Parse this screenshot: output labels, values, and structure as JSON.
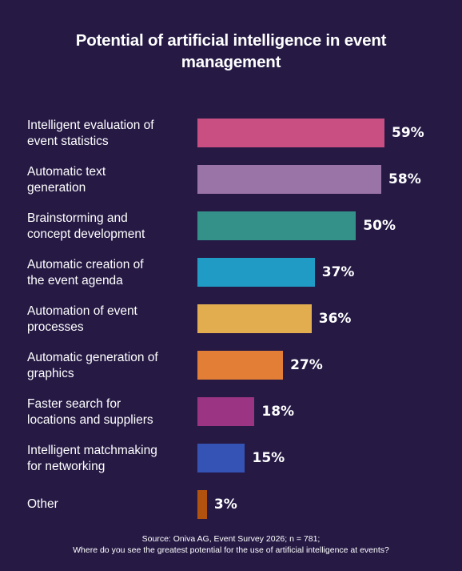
{
  "title": "Potential of artificial intelligence in event management",
  "chart_data": {
    "type": "bar",
    "orientation": "horizontal",
    "categories": [
      "Intelligent evaluation of event statistics",
      "Automatic text generation",
      "Brainstorming and concept development",
      "Automatic creation of the event agenda",
      "Automation of event processes",
      "Automatic generation of graphics",
      "Faster search for locations and suppliers",
      "Intelligent matchmaking for networking",
      "Other"
    ],
    "values": [
      59,
      58,
      50,
      37,
      36,
      27,
      18,
      15,
      3
    ],
    "value_labels": [
      "59%",
      "58%",
      "50%",
      "37%",
      "36%",
      "27%",
      "18%",
      "15%",
      "3%"
    ],
    "colors": [
      "#c94f82",
      "#9a74a6",
      "#34918a",
      "#1f9bc6",
      "#e2ad4f",
      "#e27e35",
      "#9a3483",
      "#3553b4",
      "#b2520f"
    ],
    "unit": "%",
    "xlim": [
      0,
      100
    ]
  },
  "footer": {
    "source": "Source: Oniva AG, Event Survey 2026; n = 781;",
    "question": "Where do you see the greatest potential for the use of artificial intelligence at events?"
  }
}
